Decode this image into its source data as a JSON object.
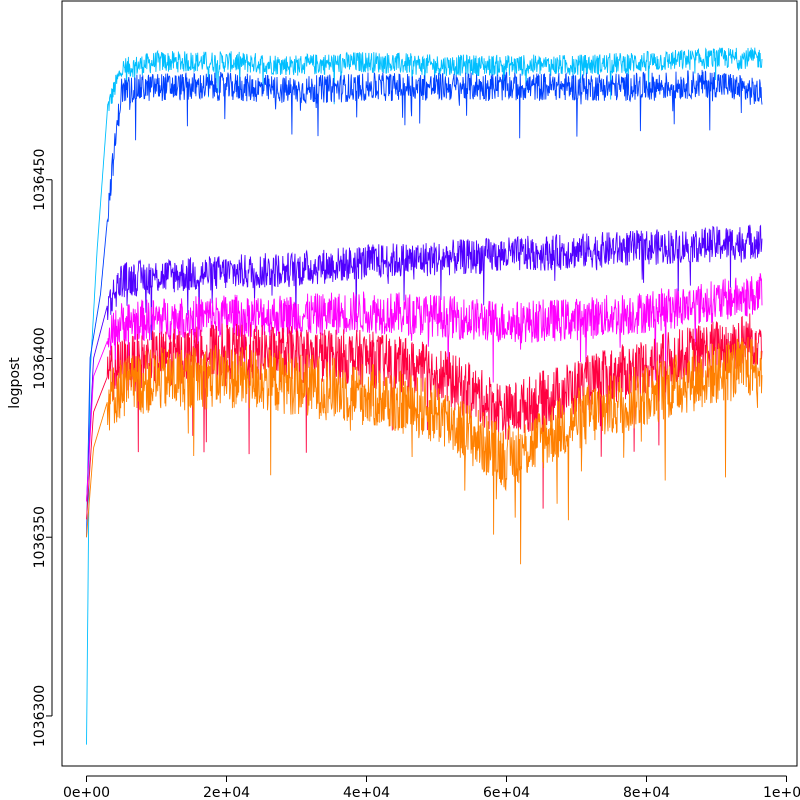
{
  "chart_data": {
    "type": "line",
    "title": "",
    "xlabel": "",
    "ylabel": "logpost",
    "xlim": [
      -3500,
      101500
    ],
    "ylim": [
      1036286,
      1036500
    ],
    "x_ticks": [
      {
        "value": 0,
        "label": "0e+00"
      },
      {
        "value": 20000,
        "label": "2e+04"
      },
      {
        "value": 40000,
        "label": "4e+04"
      },
      {
        "value": 60000,
        "label": "6e+04"
      },
      {
        "value": 80000,
        "label": "8e+04"
      },
      {
        "value": 100000,
        "label": "1e+05"
      }
    ],
    "y_ticks": [
      {
        "value": 1036300,
        "label": "1036300"
      },
      {
        "value": 1036350,
        "label": "1036350"
      },
      {
        "value": 1036400,
        "label": "1036400"
      },
      {
        "value": 1036450,
        "label": "1036450"
      }
    ],
    "grid": false,
    "legend": "none",
    "series": [
      {
        "color": "#00bfff",
        "x": [
          0,
          500,
          1500,
          3000,
          5000,
          10000,
          20000,
          30000,
          40000,
          50000,
          60000,
          70000,
          80000,
          90000,
          96500
        ],
        "values": [
          1036292,
          1036395,
          1036430,
          1036470,
          1036481,
          1036483,
          1036483,
          1036482,
          1036483,
          1036482,
          1036482,
          1036482,
          1036483,
          1036484,
          1036484
        ]
      },
      {
        "color": "#0040ff",
        "x": [
          0,
          500,
          2000,
          3500,
          5000,
          10000,
          20000,
          30000,
          40000,
          50000,
          60000,
          70000,
          80000,
          90000,
          96500
        ],
        "values": [
          1036350,
          1036400,
          1036418,
          1036450,
          1036475,
          1036476,
          1036476,
          1036475,
          1036476,
          1036476,
          1036476,
          1036476,
          1036476,
          1036477,
          1036474
        ]
      },
      {
        "color": "#5000ff",
        "x": [
          0,
          1000,
          3000,
          5000,
          10000,
          20000,
          30000,
          40000,
          50000,
          60000,
          70000,
          80000,
          90000,
          96500
        ],
        "values": [
          1036360,
          1036400,
          1036415,
          1036422,
          1036423,
          1036424,
          1036425,
          1036427,
          1036428,
          1036429,
          1036430,
          1036431,
          1036432,
          1036433
        ]
      },
      {
        "color": "#ff00ff",
        "x": [
          0,
          1000,
          3000,
          5000,
          10000,
          20000,
          30000,
          40000,
          50000,
          60000,
          70000,
          80000,
          90000,
          96500
        ],
        "values": [
          1036360,
          1036395,
          1036405,
          1036410,
          1036411,
          1036412,
          1036412,
          1036413,
          1036412,
          1036410,
          1036411,
          1036413,
          1036416,
          1036418
        ]
      },
      {
        "color": "#ff0040",
        "x": [
          0,
          1000,
          3000,
          5000,
          10000,
          20000,
          30000,
          40000,
          50000,
          60000,
          70000,
          80000,
          90000,
          96500
        ],
        "values": [
          1036355,
          1036385,
          1036395,
          1036398,
          1036400,
          1036402,
          1036401,
          1036400,
          1036396,
          1036385,
          1036392,
          1036398,
          1036403,
          1036406
        ]
      },
      {
        "color": "#ff8000",
        "x": [
          0,
          1000,
          3000,
          5000,
          10000,
          20000,
          30000,
          40000,
          50000,
          60000,
          70000,
          80000,
          90000,
          96500
        ],
        "values": [
          1036350,
          1036375,
          1036388,
          1036392,
          1036394,
          1036395,
          1036393,
          1036390,
          1036385,
          1036372,
          1036383,
          1036390,
          1036396,
          1036398
        ]
      }
    ]
  }
}
